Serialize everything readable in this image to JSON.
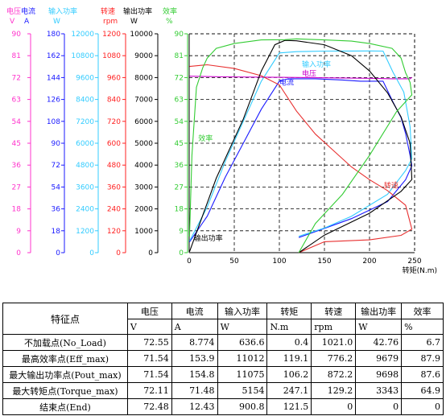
{
  "chart_data": {
    "type": "line",
    "axes_left": [
      {
        "name": "电压",
        "unit": "V",
        "color": "#ff33cc",
        "ticks": [
          "0",
          "9",
          "18",
          "27",
          "36",
          "45",
          "54",
          "63",
          "72",
          "81",
          "90"
        ]
      },
      {
        "name": "电流",
        "unit": "A",
        "color": "#1a1aff",
        "ticks": [
          "0",
          "18",
          "36",
          "54",
          "72",
          "90",
          "108",
          "126",
          "144",
          "162",
          "180"
        ]
      },
      {
        "name": "输入功率",
        "unit": "W",
        "color": "#33ccff",
        "ticks": [
          "0",
          "1200",
          "2400",
          "3600",
          "4800",
          "6000",
          "7200",
          "8400",
          "9600",
          "10800",
          "12000"
        ]
      },
      {
        "name": "转速",
        "unit": "rpm",
        "color": "#ff2222",
        "ticks": [
          "0",
          "120",
          "240",
          "360",
          "480",
          "600",
          "720",
          "840",
          "960",
          "1080",
          "1200"
        ]
      },
      {
        "name": "输出功率",
        "unit": "W",
        "color": "#000000",
        "ticks": [
          "0",
          "1000",
          "2000",
          "3000",
          "4000",
          "5000",
          "6000",
          "7000",
          "8000",
          "9000",
          "10000"
        ]
      },
      {
        "name": "效率",
        "unit": "%",
        "color": "#33cc33",
        "ticks": [
          "0",
          "9",
          "18",
          "27",
          "36",
          "45",
          "54",
          "63",
          "72",
          "81",
          "90"
        ]
      }
    ],
    "x_ticks": [
      "0",
      "50",
      "100",
      "150",
      "200",
      "250"
    ],
    "xlabel": "转矩(N.m)",
    "xlim": [
      0,
      250
    ],
    "grid": true,
    "series": [
      {
        "name": "电压",
        "label": "电压",
        "color": "#cc00cc",
        "axis": "V",
        "label_at": [
          125,
          72.6
        ],
        "points": [
          [
            0.4,
            72.55
          ],
          [
            40,
            72.3
          ],
          [
            100,
            72.1
          ],
          [
            150,
            71.9
          ],
          [
            200,
            71.7
          ],
          [
            225,
            71.5
          ],
          [
            245,
            71.5
          ],
          [
            247,
            72.1
          ]
        ]
      },
      {
        "name": "电流",
        "label": "电流",
        "color": "#1a1aff",
        "axis": "A",
        "label_at": [
          100,
          138
        ],
        "points": [
          [
            0.4,
            8.774
          ],
          [
            20,
            30
          ],
          [
            40,
            62
          ],
          [
            60,
            90
          ],
          [
            80,
            118
          ],
          [
            100,
            141
          ],
          [
            110,
            143
          ],
          [
            140,
            143
          ],
          [
            170,
            142
          ],
          [
            190,
            141
          ],
          [
            215,
            141
          ],
          [
            226,
            124
          ],
          [
            235,
            111
          ],
          [
            240,
            98
          ],
          [
            245,
            80
          ],
          [
            247,
            71.5
          ],
          [
            240,
            60
          ],
          [
            220,
            42
          ],
          [
            180,
            28
          ],
          [
            150,
            20
          ],
          [
            121.5,
            12.43
          ]
        ]
      },
      {
        "name": "输入功率",
        "label": "输入功率",
        "color": "#33ccff",
        "axis": "W_in",
        "label_at": [
          125,
          10200
        ],
        "points": [
          [
            0.4,
            636.6
          ],
          [
            20,
            2500
          ],
          [
            40,
            5000
          ],
          [
            60,
            7200
          ],
          [
            80,
            9400
          ],
          [
            100,
            10950
          ],
          [
            119,
            11020
          ],
          [
            150,
            11050
          ],
          [
            180,
            11055
          ],
          [
            200,
            11060
          ],
          [
            215,
            11050
          ],
          [
            226,
            9900
          ],
          [
            238,
            8800
          ],
          [
            245,
            6900
          ],
          [
            247,
            5154
          ],
          [
            240,
            4500
          ],
          [
            220,
            3200
          ],
          [
            180,
            2000
          ],
          [
            150,
            1350
          ],
          [
            121.5,
            900.8
          ]
        ]
      },
      {
        "name": "转速",
        "label": "转速",
        "color": "#e83030",
        "axis": "rpm",
        "label_at": [
          216,
          355
        ],
        "points": [
          [
            0.4,
            1021
          ],
          [
            20,
            1030
          ],
          [
            50,
            1010
          ],
          [
            80,
            970
          ],
          [
            100,
            920
          ],
          [
            119,
            776.2
          ],
          [
            140,
            650
          ],
          [
            160,
            560
          ],
          [
            180,
            470
          ],
          [
            200,
            400
          ],
          [
            220,
            340
          ],
          [
            240,
            260
          ],
          [
            247,
            129.2
          ],
          [
            235,
            95
          ],
          [
            200,
            70
          ],
          [
            150,
            60
          ],
          [
            121.5,
            0
          ]
        ]
      },
      {
        "name": "输出功率",
        "label": "输出功率",
        "color": "#000000",
        "axis": "W_out",
        "label_at": [
          5,
          560
        ],
        "points": [
          [
            0.4,
            42.76
          ],
          [
            30,
            3400
          ],
          [
            60,
            6100
          ],
          [
            80,
            8300
          ],
          [
            95,
            9500
          ],
          [
            106.2,
            9698
          ],
          [
            119,
            9679
          ],
          [
            150,
            9500
          ],
          [
            180,
            9000
          ],
          [
            200,
            8300
          ],
          [
            220,
            7300
          ],
          [
            235,
            6200
          ],
          [
            245,
            5000
          ],
          [
            247,
            3343
          ],
          [
            235,
            2800
          ],
          [
            200,
            1800
          ],
          [
            150,
            800
          ],
          [
            121.5,
            0
          ]
        ]
      },
      {
        "name": "效率",
        "label": "效率",
        "color": "#33cc33",
        "axis": "pct",
        "label_at": [
          10,
          46
        ],
        "points": [
          [
            0.4,
            6.7
          ],
          [
            3,
            40
          ],
          [
            8,
            68
          ],
          [
            15,
            76
          ],
          [
            20,
            80
          ],
          [
            30,
            84
          ],
          [
            50,
            86
          ],
          [
            80,
            87.5
          ],
          [
            106.2,
            87.6
          ],
          [
            119.1,
            87.9
          ],
          [
            150,
            87.5
          ],
          [
            180,
            87
          ],
          [
            200,
            86
          ],
          [
            225,
            84
          ],
          [
            235,
            80
          ],
          [
            240,
            74
          ],
          [
            245,
            70
          ],
          [
            247,
            64.9
          ],
          [
            230,
            58
          ],
          [
            200,
            40
          ],
          [
            170,
            24
          ],
          [
            140,
            12
          ],
          [
            121.5,
            0
          ]
        ]
      }
    ]
  },
  "table": {
    "header_label": "特征点",
    "columns": [
      "电压",
      "电流",
      "输入功率",
      "转矩",
      "转速",
      "输出功率",
      "效率"
    ],
    "units": [
      "V",
      "A",
      "W",
      "N.m",
      "rpm",
      "W",
      "%"
    ],
    "rows": [
      {
        "name": "不加载点(No_Load)",
        "values": [
          "72.55",
          "8.774",
          "636.6",
          "0.4",
          "1021.0",
          "42.76",
          "6.7"
        ]
      },
      {
        "name": "最高效率点(Eff_max)",
        "values": [
          "71.54",
          "153.9",
          "11012",
          "119.1",
          "776.2",
          "9679",
          "87.9"
        ]
      },
      {
        "name": "最大输出功率点(Pout_max)",
        "values": [
          "71.54",
          "154.8",
          "11075",
          "106.2",
          "872.2",
          "9698",
          "87.6"
        ]
      },
      {
        "name": "最大转矩点(Torque_max)",
        "values": [
          "72.11",
          "71.48",
          "5154",
          "247.1",
          "129.2",
          "3343",
          "64.9"
        ]
      },
      {
        "name": "结束点(End)",
        "values": [
          "72.48",
          "12.43",
          "900.8",
          "121.5",
          "0",
          "0",
          "0"
        ]
      }
    ]
  }
}
